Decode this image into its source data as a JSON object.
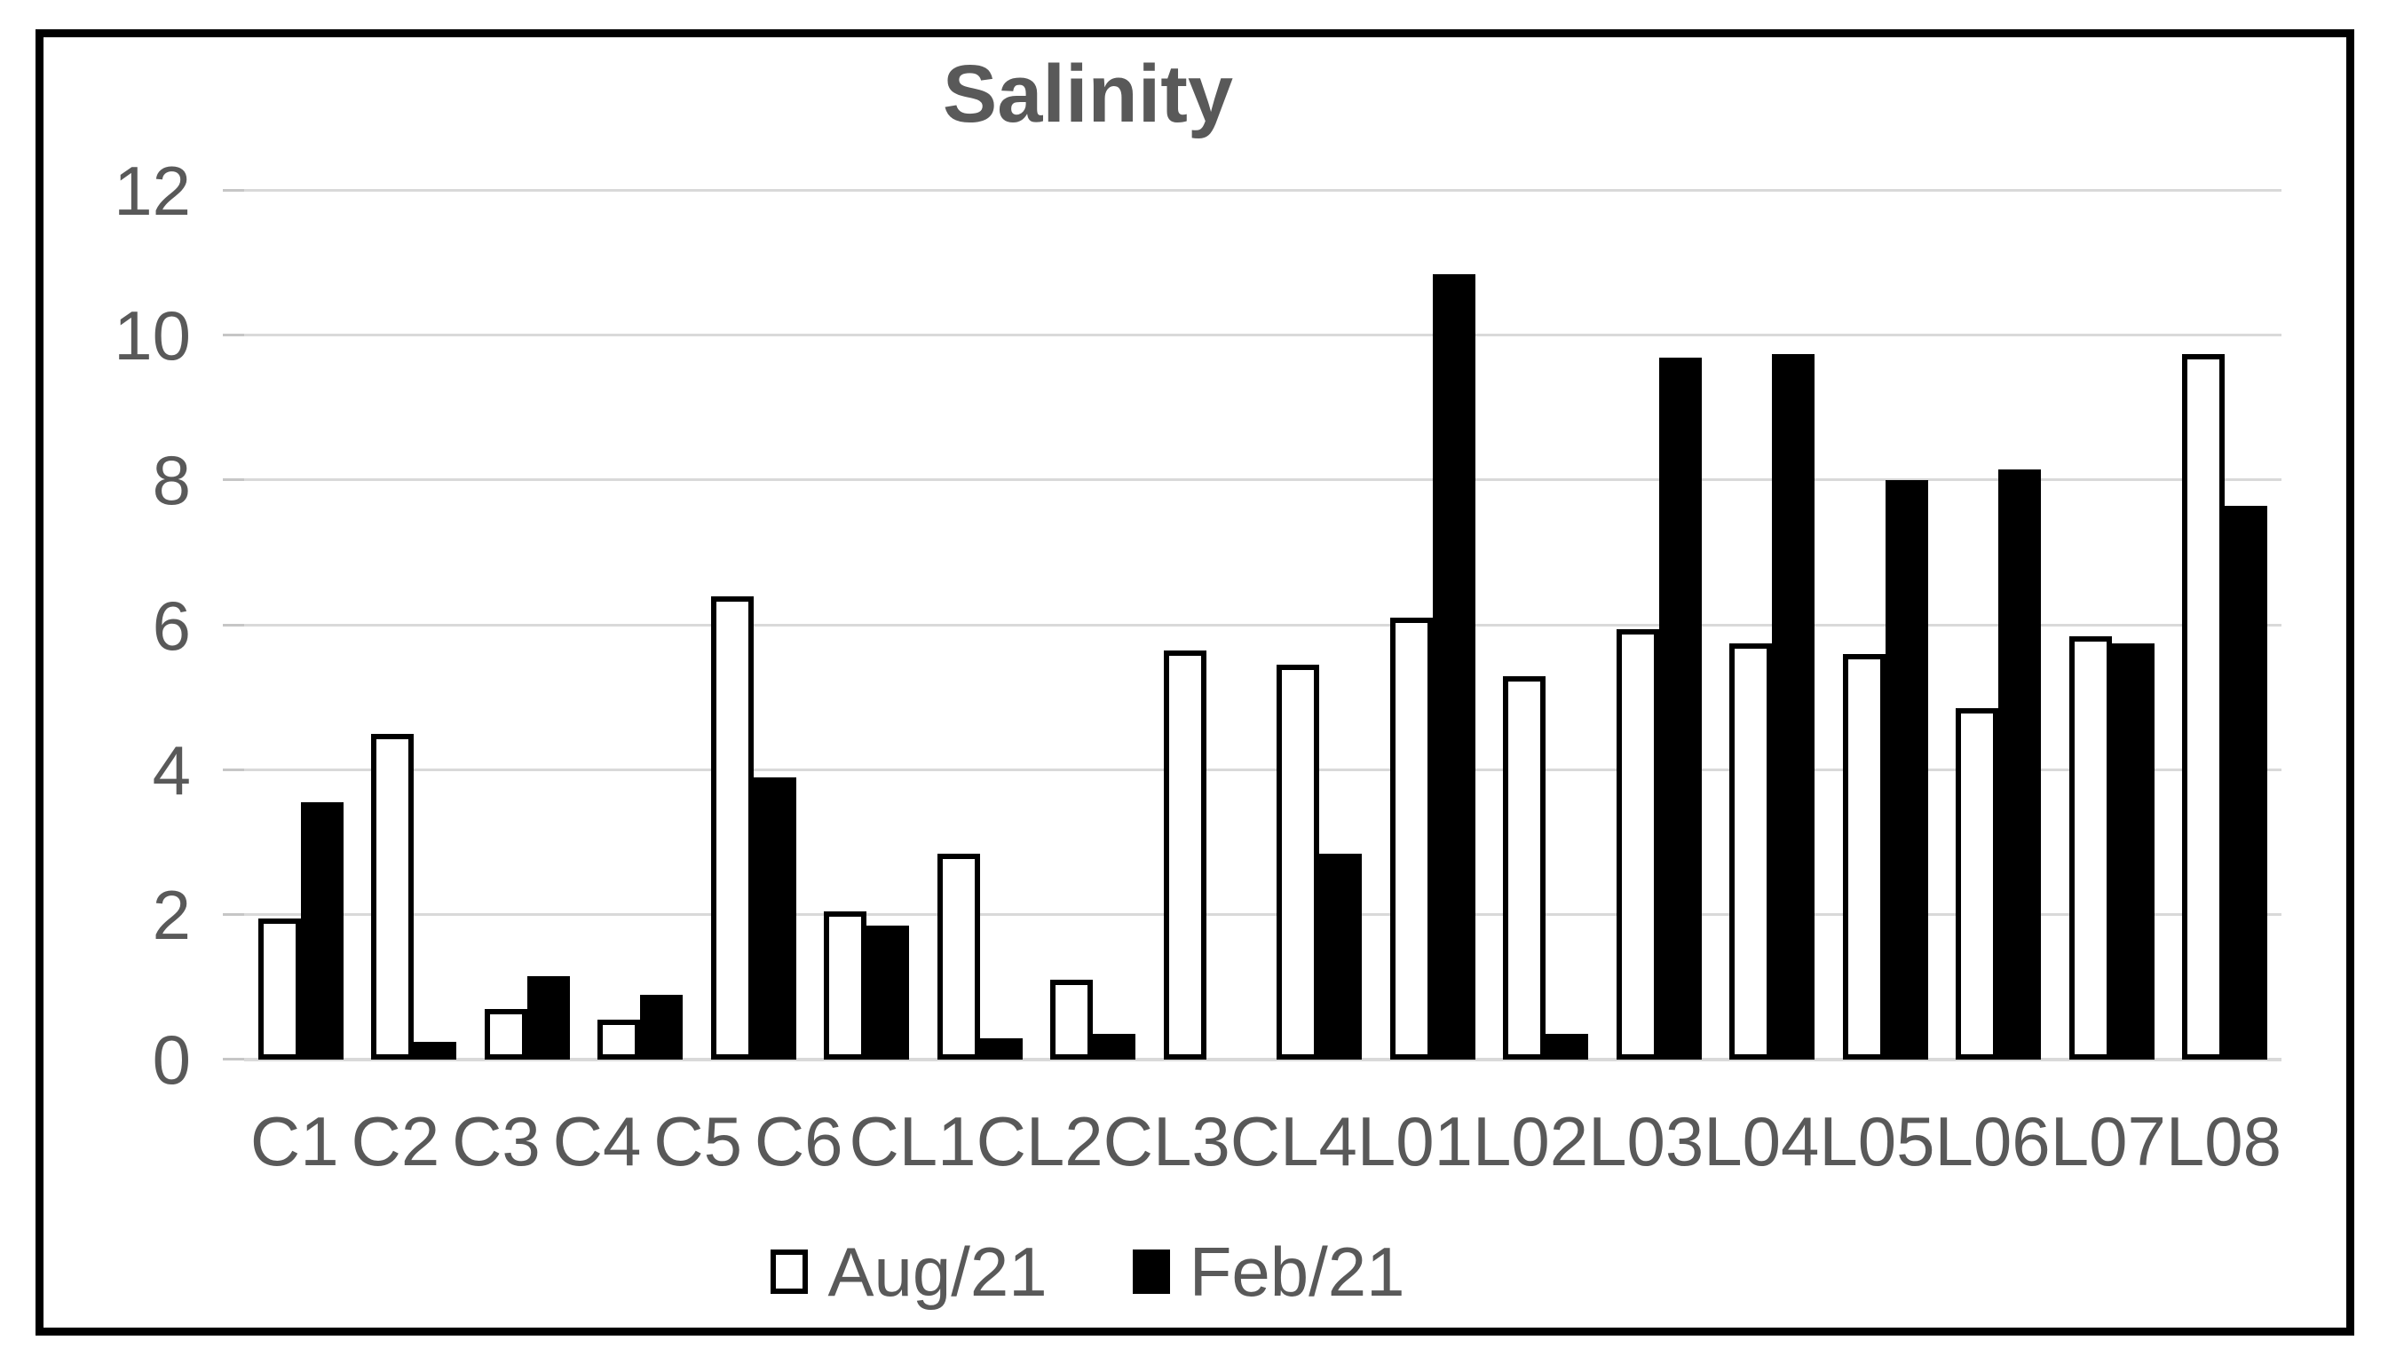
{
  "colors": {
    "text": "#595959",
    "gridline": "#d9d9d9",
    "aug_fill": "#ffffff",
    "aug_border": "#000000",
    "feb_fill": "#000000",
    "frame_border": "#000000"
  },
  "chart_data": {
    "type": "bar",
    "title": "Salinity",
    "categories": [
      "C1",
      "C2",
      "C3",
      "C4",
      "C5",
      "C6",
      "CL1",
      "CL2",
      "CL3",
      "CL4",
      "L01",
      "L02",
      "L03",
      "L04",
      "L05",
      "L06",
      "L07",
      "L08"
    ],
    "series": [
      {
        "name": "Aug/21",
        "values": [
          1.95,
          4.5,
          0.7,
          0.55,
          6.4,
          2.05,
          2.85,
          1.1,
          5.65,
          5.45,
          6.1,
          5.3,
          5.95,
          5.75,
          5.6,
          4.85,
          5.85,
          9.75
        ]
      },
      {
        "name": "Feb/21",
        "values": [
          3.55,
          0.25,
          1.15,
          0.9,
          3.9,
          1.85,
          0.3,
          0.35,
          0,
          2.85,
          10.85,
          0.35,
          9.7,
          9.75,
          8.0,
          8.15,
          5.75,
          7.65
        ]
      }
    ],
    "xlabel": "",
    "ylabel": "",
    "ylim": [
      0,
      12
    ],
    "yticks": [
      0,
      2,
      4,
      6,
      8,
      10,
      12
    ],
    "grid": true,
    "legend_position": "bottom"
  }
}
